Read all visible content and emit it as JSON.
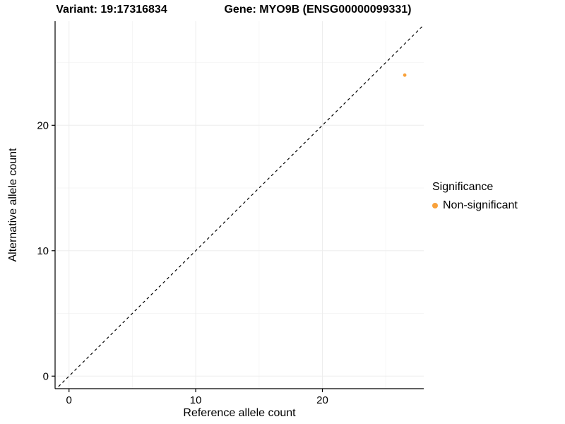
{
  "header": {
    "variant_title": "Variant: 19:17316834",
    "gene_title": "Gene: MYO9B (ENSG00000099331)"
  },
  "chart_data": {
    "type": "scatter",
    "title_left": "Variant: 19:17316834",
    "title_right": "Gene: MYO9B (ENSG00000099331)",
    "xlabel": "Reference allele count",
    "ylabel": "Alternative allele count",
    "xlim": [
      -1.1,
      28
    ],
    "ylim": [
      -1,
      28.3
    ],
    "xticks": [
      0,
      10,
      20
    ],
    "yticks": [
      0,
      10,
      20
    ],
    "minor_ticks": [
      5,
      15,
      25
    ],
    "grid": true,
    "grid_major_color": "#ededed",
    "grid_minor_color": "#f6f6f6",
    "identity_line": {
      "style": "dashed",
      "color": "#000000",
      "equation": "y = x"
    },
    "series": [
      {
        "name": "Non-significant",
        "color": "#F9A13A",
        "points": [
          {
            "x": 26.5,
            "y": 24
          }
        ]
      }
    ],
    "legend": {
      "title": "Significance",
      "position": "right",
      "entries": [
        {
          "label": "Non-significant",
          "color": "#F9A13A"
        }
      ]
    }
  }
}
